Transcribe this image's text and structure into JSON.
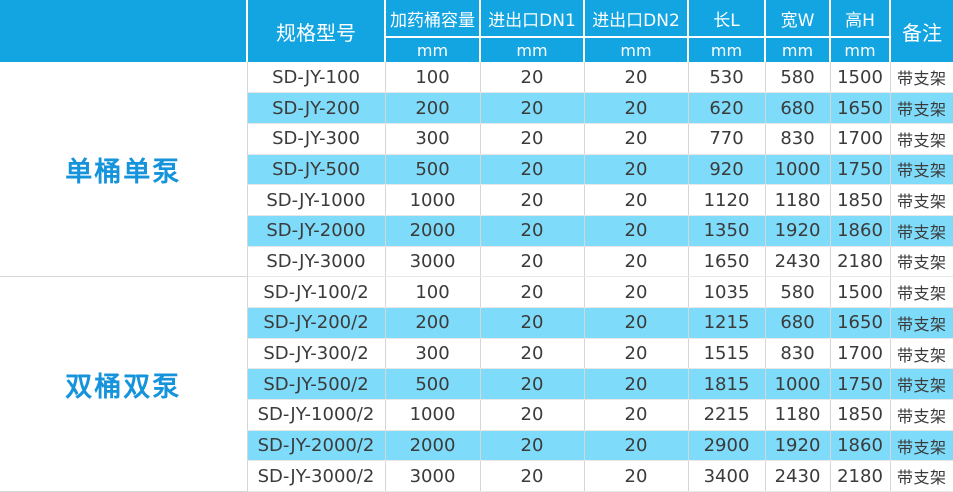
{
  "table": {
    "header": {
      "model_label": "规格型号",
      "note_label": "备注",
      "measure_columns": [
        {
          "label": "加药桶容量",
          "unit": "mm"
        },
        {
          "label": "进出口DN1",
          "unit": "mm"
        },
        {
          "label": "进出口DN2",
          "unit": "mm"
        },
        {
          "label": "长L",
          "unit": "mm"
        },
        {
          "label": "宽W",
          "unit": "mm"
        },
        {
          "label": "高H",
          "unit": "mm"
        }
      ]
    },
    "groups": [
      {
        "label": "单桶单泵",
        "rows": [
          [
            "SD-JY-100",
            "100",
            "20",
            "20",
            "530",
            "580",
            "1500",
            "带支架"
          ],
          [
            "SD-JY-200",
            "200",
            "20",
            "20",
            "620",
            "680",
            "1650",
            "带支架"
          ],
          [
            "SD-JY-300",
            "300",
            "20",
            "20",
            "770",
            "830",
            "1700",
            "带支架"
          ],
          [
            "SD-JY-500",
            "500",
            "20",
            "20",
            "920",
            "1000",
            "1750",
            "带支架"
          ],
          [
            "SD-JY-1000",
            "1000",
            "20",
            "20",
            "1120",
            "1180",
            "1850",
            "带支架"
          ],
          [
            "SD-JY-2000",
            "2000",
            "20",
            "20",
            "1350",
            "1920",
            "1860",
            "带支架"
          ],
          [
            "SD-JY-3000",
            "3000",
            "20",
            "20",
            "1650",
            "2430",
            "2180",
            "带支架"
          ]
        ]
      },
      {
        "label": "双桶双泵",
        "rows": [
          [
            "SD-JY-100/2",
            "100",
            "20",
            "20",
            "1035",
            "580",
            "1500",
            "带支架"
          ],
          [
            "SD-JY-200/2",
            "200",
            "20",
            "20",
            "1215",
            "680",
            "1650",
            "带支架"
          ],
          [
            "SD-JY-300/2",
            "300",
            "20",
            "20",
            "1515",
            "830",
            "1700",
            "带支架"
          ],
          [
            "SD-JY-500/2",
            "500",
            "20",
            "20",
            "1815",
            "1000",
            "1750",
            "带支架"
          ],
          [
            "SD-JY-1000/2",
            "1000",
            "20",
            "20",
            "2215",
            "1180",
            "1850",
            "带支架"
          ],
          [
            "SD-JY-2000/2",
            "2000",
            "20",
            "20",
            "2900",
            "1920",
            "1860",
            "带支架"
          ],
          [
            "SD-JY-3000/2",
            "3000",
            "20",
            "20",
            "3400",
            "2430",
            "2180",
            "带支架"
          ]
        ]
      }
    ]
  },
  "colors": {
    "header_bg": "#12A5E2",
    "stripe_bg": "#7EDBF9",
    "group_label_text": "#1593DB",
    "body_text": "#3B3B3B",
    "header_text": "#FFFFFF",
    "grid_line": "#D6D6D6"
  }
}
